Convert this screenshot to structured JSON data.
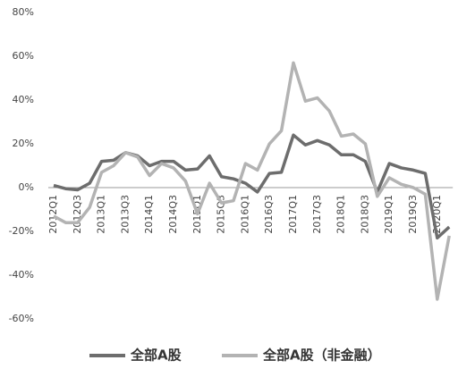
{
  "chart_data": {
    "type": "line",
    "categories": [
      "2012Q1",
      null,
      "2012Q3",
      null,
      "2013Q1",
      null,
      "2013Q3",
      null,
      "2014Q1",
      null,
      "2014Q3",
      null,
      "2015Q1",
      null,
      "2015Q3",
      null,
      "2016Q1",
      null,
      "2016Q3",
      null,
      "2017Q1",
      null,
      "2017Q3",
      null,
      "2018Q1",
      null,
      "2018Q3",
      null,
      "2019Q1",
      null,
      "2019Q3",
      null,
      "2020Q1",
      null
    ],
    "series": [
      {
        "name": "全部A股",
        "color": "#6d6d6d",
        "values": [
          1,
          -0.5,
          -1,
          2,
          12,
          12.5,
          16,
          14.5,
          10,
          12,
          12,
          8,
          8.5,
          14.5,
          5,
          4,
          2,
          -2,
          6.5,
          7,
          24,
          19.5,
          21.5,
          19.5,
          15,
          15,
          12,
          -2,
          11,
          9,
          8,
          6.5,
          -23,
          -18
        ]
      },
      {
        "name": "全部A股（非金融）",
        "color": "#b3b3b3",
        "values": [
          -13,
          -16,
          -16,
          -9,
          7,
          10,
          16,
          14,
          5.5,
          11,
          9,
          3,
          -12,
          2,
          -7,
          -6,
          11,
          8,
          20,
          26,
          57,
          39.5,
          41,
          35,
          23.5,
          24.5,
          20,
          -4,
          4.5,
          1.5,
          0,
          -3,
          -51,
          -22
        ]
      }
    ],
    "ylim": [
      -60,
      80
    ],
    "yticks": [
      {
        "value": -60,
        "label": "-60%"
      },
      {
        "value": -40,
        "label": "-40%"
      },
      {
        "value": -20,
        "label": "-20%"
      },
      {
        "value": 0,
        "label": "0%"
      },
      {
        "value": 20,
        "label": "20%"
      },
      {
        "value": 40,
        "label": "40%"
      },
      {
        "value": 60,
        "label": "60%"
      },
      {
        "value": 80,
        "label": "80%"
      }
    ],
    "legend": "bottom"
  }
}
